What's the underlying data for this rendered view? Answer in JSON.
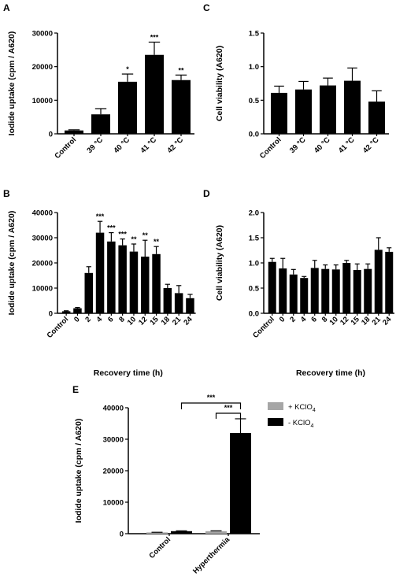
{
  "panel_letters": [
    "A",
    "C",
    "B",
    "D",
    "E"
  ],
  "chart_data": [
    {
      "panel": "A",
      "type": "bar",
      "categories": [
        "Control",
        "39 °C",
        "40 °C",
        "41 °C",
        "42 °C"
      ],
      "values": [
        1000,
        5800,
        15500,
        23500,
        16000
      ],
      "errors": [
        200,
        1700,
        2300,
        3800,
        1500
      ],
      "significance": [
        "",
        "",
        "*",
        "***",
        "**"
      ],
      "ylabel": "Iodide uptake (cpm / A620)",
      "xlabel": "",
      "ylim": [
        0,
        30000
      ],
      "yticks": [
        "0",
        "10000",
        "20000",
        "30000"
      ]
    },
    {
      "panel": "C",
      "type": "bar",
      "categories": [
        "Control",
        "39 °C",
        "40 °C",
        "41 °C",
        "42 °C"
      ],
      "values": [
        0.61,
        0.66,
        0.72,
        0.79,
        0.48
      ],
      "errors": [
        0.1,
        0.12,
        0.11,
        0.19,
        0.16
      ],
      "significance": [
        "",
        "",
        "",
        "",
        ""
      ],
      "ylabel": "Cell viability  (A620)",
      "xlabel": "",
      "ylim": [
        0,
        1.5
      ],
      "yticks": [
        "0.0",
        "0.5",
        "1.0",
        "1.5"
      ]
    },
    {
      "panel": "B",
      "type": "bar",
      "categories": [
        "Control",
        "0",
        "2",
        "4",
        "6",
        "8",
        "10",
        "12",
        "15",
        "18",
        "21",
        "24"
      ],
      "values": [
        800,
        2000,
        16000,
        32000,
        28500,
        27000,
        24500,
        22500,
        23500,
        10000,
        8000,
        6000
      ],
      "errors": [
        200,
        300,
        2500,
        4500,
        3500,
        2500,
        3000,
        6500,
        3000,
        1500,
        3000,
        1500
      ],
      "significance": [
        "",
        "",
        "",
        "***",
        "***",
        "***",
        "**",
        "**",
        "**",
        "",
        "",
        ""
      ],
      "ylabel": "Iodide uptake (cpm / A620)",
      "xlabel": "Recovery time (h)",
      "ylim": [
        0,
        40000
      ],
      "yticks": [
        "0",
        "10000",
        "20000",
        "30000",
        "40000"
      ]
    },
    {
      "panel": "D",
      "type": "bar",
      "categories": [
        "Control",
        "0",
        "2",
        "4",
        "6",
        "8",
        "10",
        "12",
        "15",
        "18",
        "21",
        "24"
      ],
      "values": [
        1.02,
        0.89,
        0.77,
        0.7,
        0.9,
        0.88,
        0.87,
        1.0,
        0.86,
        0.88,
        1.26,
        1.22
      ],
      "errors": [
        0.07,
        0.2,
        0.1,
        0.03,
        0.15,
        0.08,
        0.09,
        0.05,
        0.12,
        0.1,
        0.24,
        0.08
      ],
      "significance": [
        "",
        "",
        "",
        "",
        "",
        "",
        "",
        "",
        "",
        "",
        "",
        ""
      ],
      "ylabel": "Cell viability  (A620)",
      "xlabel": "Recovery time (h)",
      "ylim": [
        0,
        2.0
      ],
      "yticks": [
        "0.0",
        "0.5",
        "1.0",
        "1.5",
        "2.0"
      ]
    },
    {
      "panel": "E",
      "type": "bar",
      "categories": [
        "Control",
        "Hyperthermia"
      ],
      "series": [
        {
          "name": "+ KClO4",
          "color": "#a6a6a6",
          "values": [
            400,
            800
          ],
          "errors": [
            50,
            100
          ]
        },
        {
          "name": "- KClO4",
          "color": "#000000",
          "values": [
            800,
            32000
          ],
          "errors": [
            100,
            4500
          ]
        }
      ],
      "significance": [
        "***",
        "***"
      ],
      "ylabel": "Iodide uptake (cpm / A620)",
      "xlabel": "",
      "ylim": [
        0,
        40000
      ],
      "yticks": [
        "0",
        "10000",
        "20000",
        "30000",
        "40000"
      ],
      "legend_position": "top-right"
    }
  ]
}
